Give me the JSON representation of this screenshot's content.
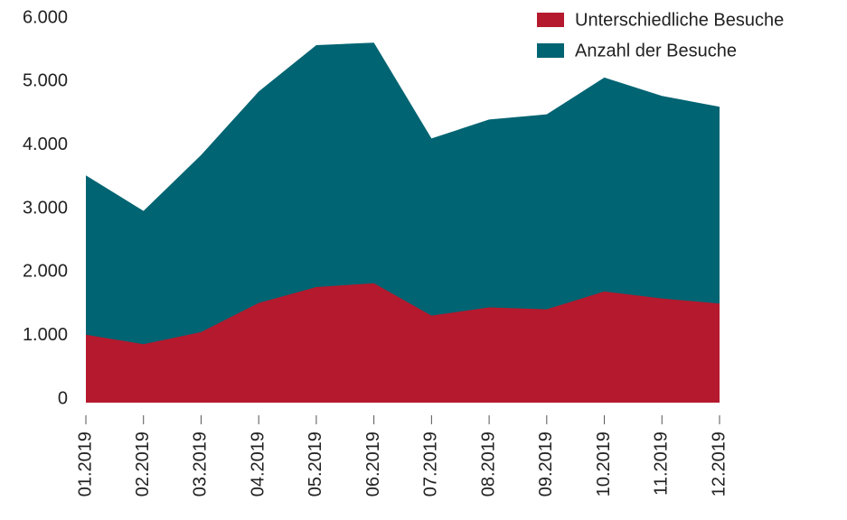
{
  "chart_data": {
    "type": "area",
    "categories": [
      "01.2019",
      "02.2019",
      "03.2019",
      "04.2019",
      "05.2019",
      "06.2019",
      "07.2019",
      "08.2019",
      "09.2019",
      "10.2019",
      "11.2019",
      "12.2019"
    ],
    "series": [
      {
        "name": "Unterschiedliche Besuche",
        "color": "#b5192e",
        "values": [
          1070,
          920,
          1110,
          1570,
          1820,
          1880,
          1370,
          1500,
          1470,
          1750,
          1640,
          1560
        ]
      },
      {
        "name": "Anzahl der Besuche",
        "color": "#006472",
        "values": [
          3580,
          3020,
          3900,
          4900,
          5630,
          5670,
          4160,
          4460,
          4540,
          5120,
          4830,
          4660
        ]
      }
    ],
    "ylim": [
      0,
      6000
    ],
    "yticks": [
      0,
      {
        "value": 1000,
        "label": "1.000"
      },
      {
        "value": 2000,
        "label": "2.000"
      },
      {
        "value": 3000,
        "label": "3.000"
      },
      {
        "value": 4000,
        "label": "4.000"
      },
      {
        "value": 5000,
        "label": "5.000"
      },
      {
        "value": 6000,
        "label": "6.000"
      }
    ],
    "legend": "top-right"
  }
}
